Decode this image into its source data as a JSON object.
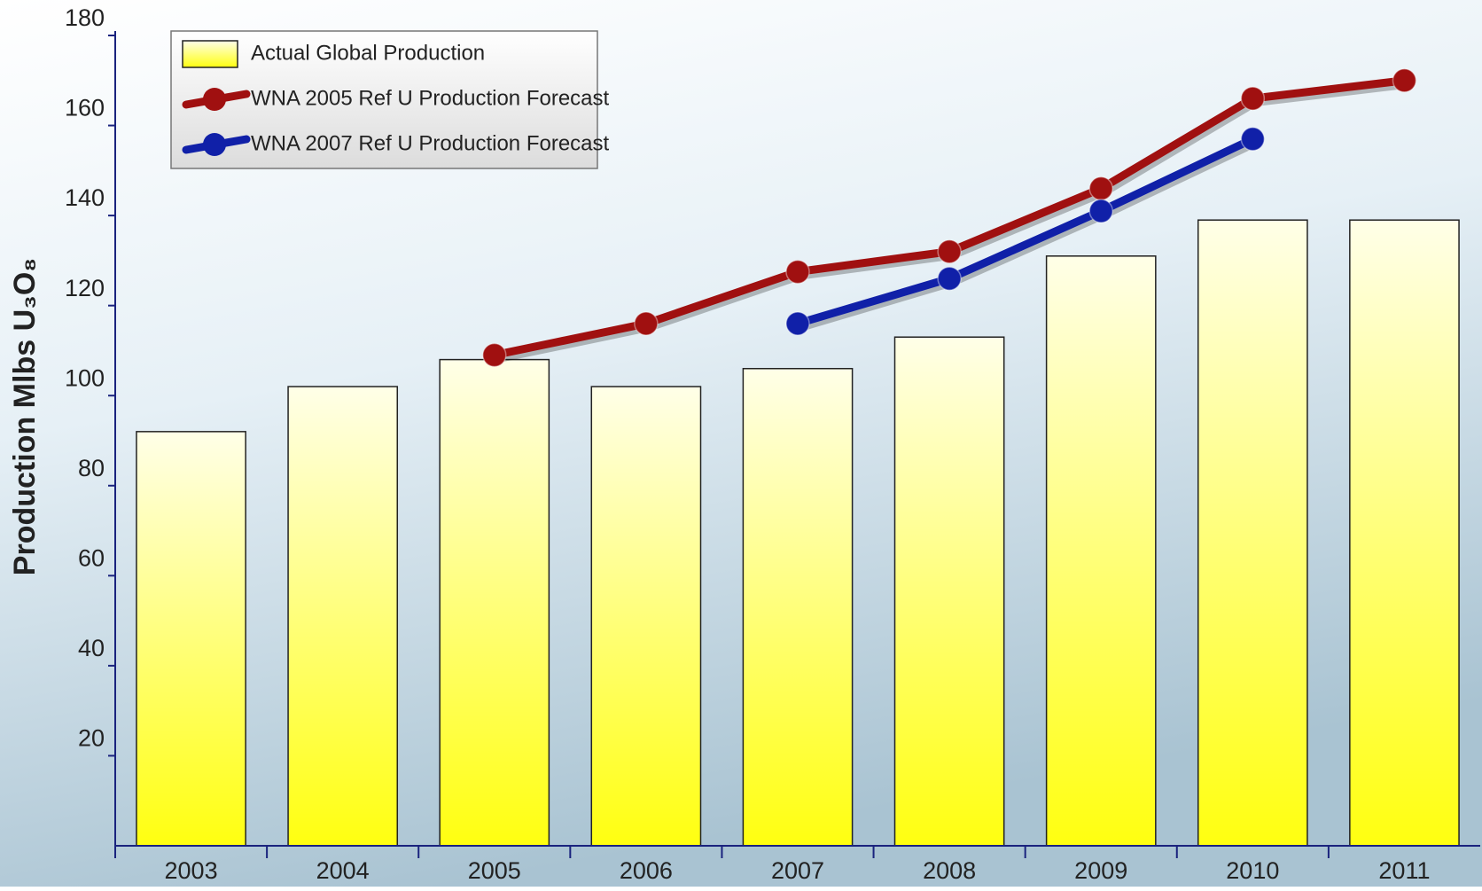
{
  "chart_data": {
    "type": "bar-line",
    "y_label": "Production Mlbs U₃O₈",
    "categories": [
      "2003",
      "2004",
      "2005",
      "2006",
      "2007",
      "2008",
      "2009",
      "2010",
      "2011"
    ],
    "series": [
      {
        "name": "Actual Global Production",
        "type": "bar",
        "color": "#ffff33",
        "values": [
          92,
          102,
          108,
          102,
          106,
          113,
          131,
          139,
          139
        ]
      },
      {
        "name": "WNA 2005 Ref U Production Forecast",
        "type": "line",
        "color": "#a01010",
        "values": [
          null,
          null,
          109,
          116,
          127.5,
          132,
          146,
          166,
          170
        ]
      },
      {
        "name": "WNA 2007 Ref U Production Forecast",
        "type": "line",
        "color": "#1020a8",
        "values": [
          null,
          null,
          null,
          null,
          116,
          126,
          141,
          157,
          null
        ]
      }
    ],
    "ylim": [
      0,
      180
    ],
    "yticks": [
      20,
      40,
      60,
      80,
      100,
      120,
      140,
      160,
      180
    ],
    "grid": false
  }
}
